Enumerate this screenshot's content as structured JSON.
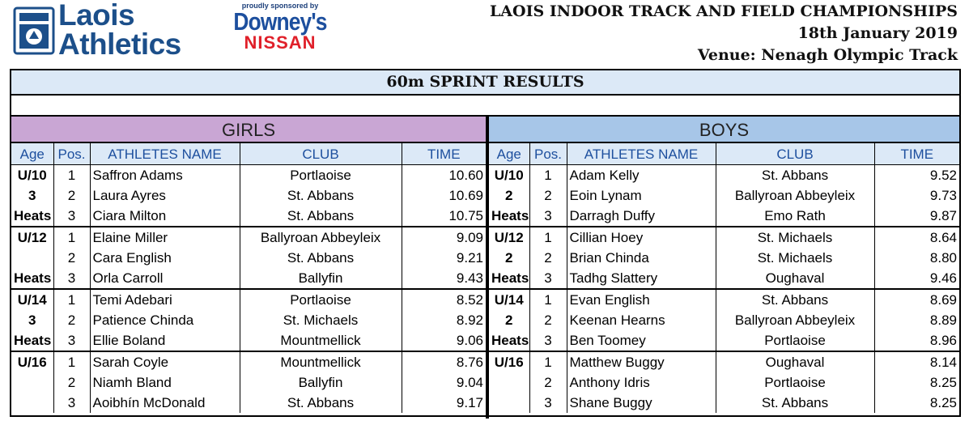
{
  "logo": {
    "line1": "Laois",
    "line2": "Athletics"
  },
  "sponsor": {
    "small": "proudly sponsored by",
    "brand": "Downey's",
    "make": "NISSAN"
  },
  "event": {
    "title": "LAOIS INDOOR TRACK AND FIELD CHAMPIONSHIPS",
    "date": "18th January 2019",
    "venue": "Venue: Nenagh Olympic Track"
  },
  "results_title": "60m SPRINT RESULTS",
  "columns": {
    "age": "Age",
    "pos": "Pos.",
    "name": "ATHLETES NAME",
    "club": "CLUB",
    "time": "TIME"
  },
  "colors": {
    "header_blue": "#1d4f9e",
    "girls_band": "#c9a6d4",
    "boys_band": "#a7c6e8",
    "title_band": "#dce9f7",
    "nissan_red": "#e0202a"
  },
  "girls": {
    "label": "GIRLS",
    "rows": [
      {
        "age": "U/10",
        "pos": "1",
        "name": "Saffron Adams",
        "club": "Portlaoise",
        "time": "10.60"
      },
      {
        "age": "3",
        "pos": "2",
        "name": "Laura Ayres",
        "club": "St. Abbans",
        "time": "10.69"
      },
      {
        "age": "Heats",
        "pos": "3",
        "name": "Ciara Milton",
        "club": "St. Abbans",
        "time": "10.75"
      },
      {
        "age": "U/12",
        "pos": "1",
        "name": "Elaine Miller",
        "club": "Ballyroan Abbeyleix",
        "time": "9.09"
      },
      {
        "age": "",
        "pos": "2",
        "name": "Cara English",
        "club": "St. Abbans",
        "time": "9.21"
      },
      {
        "age": "Heats",
        "pos": "3",
        "name": "Orla Carroll",
        "club": "Ballyfin",
        "time": "9.43"
      },
      {
        "age": "U/14",
        "pos": "1",
        "name": "Temi Adebari",
        "club": "Portlaoise",
        "time": "8.52"
      },
      {
        "age": "3",
        "pos": "2",
        "name": "Patience Chinda",
        "club": "St. Michaels",
        "time": "8.92"
      },
      {
        "age": "Heats",
        "pos": "3",
        "name": "Ellie Boland",
        "club": "Mountmellick",
        "time": "9.06"
      },
      {
        "age": "U/16",
        "pos": "1",
        "name": "Sarah Coyle",
        "club": "Mountmellick",
        "time": "8.76"
      },
      {
        "age": "",
        "pos": "2",
        "name": "Niamh Bland",
        "club": "Ballyfin",
        "time": "9.04"
      },
      {
        "age": "",
        "pos": "3",
        "name": "Aoibhín McDonald",
        "club": "St. Abbans",
        "time": "9.17"
      }
    ]
  },
  "boys": {
    "label": "BOYS",
    "rows": [
      {
        "age": "U/10",
        "pos": "1",
        "name": "Adam Kelly",
        "club": "St. Abbans",
        "time": "9.52"
      },
      {
        "age": "2",
        "pos": "2",
        "name": "Eoin Lynam",
        "club": "Ballyroan Abbeyleix",
        "time": "9.73"
      },
      {
        "age": "Heats",
        "pos": "3",
        "name": "Darragh Duffy",
        "club": "Emo Rath",
        "time": "9.87"
      },
      {
        "age": "U/12",
        "pos": "1",
        "name": "Cillian Hoey",
        "club": "St. Michaels",
        "time": "8.64"
      },
      {
        "age": "2",
        "pos": "2",
        "name": "Brian Chinda",
        "club": "St. Michaels",
        "time": "8.80"
      },
      {
        "age": "Heats",
        "pos": "3",
        "name": "Tadhg Slattery",
        "club": "Oughaval",
        "time": "9.46"
      },
      {
        "age": "U/14",
        "pos": "1",
        "name": "Evan English",
        "club": "St. Abbans",
        "time": "8.69"
      },
      {
        "age": "2",
        "pos": "2",
        "name": "Keenan Hearns",
        "club": "Ballyroan Abbeyleix",
        "time": "8.89"
      },
      {
        "age": "Heats",
        "pos": "3",
        "name": "Ben Toomey",
        "club": "Portlaoise",
        "time": "8.96"
      },
      {
        "age": "U/16",
        "pos": "1",
        "name": "Matthew Buggy",
        "club": "Oughaval",
        "time": "8.14"
      },
      {
        "age": "",
        "pos": "2",
        "name": "Anthony Idris",
        "club": "Portlaoise",
        "time": "8.25"
      },
      {
        "age": "",
        "pos": "3",
        "name": "Shane Buggy",
        "club": "St. Abbans",
        "time": "8.25"
      }
    ]
  }
}
